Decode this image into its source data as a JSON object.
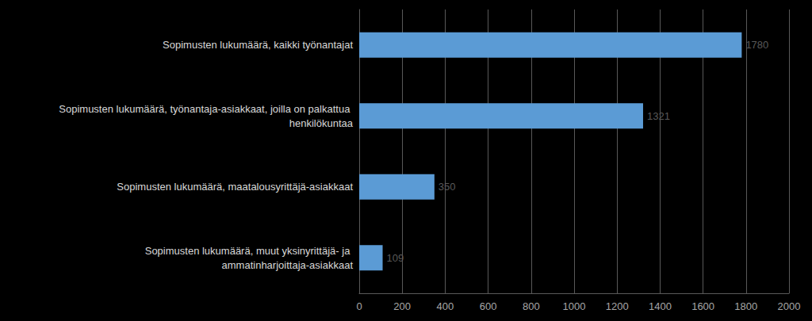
{
  "chart_data": {
    "type": "bar",
    "orientation": "horizontal",
    "categories": [
      "Sopimusten lukumäärä, kaikki työnantajat",
      "Sopimusten lukumäärä, työnantaja-asiakkaat, joilla on palkattua henkilökuntaa",
      "Sopimusten lukumäärä, maatalousyrittäjä-asiakkaat",
      "Sopimusten lukumäärä, muut yksinyrittäjä- ja ammatinharjoittaja-asiakkaat"
    ],
    "values": [
      1780,
      1321,
      350,
      109
    ],
    "color": "#5b9bd5",
    "xlim": [
      0,
      2000
    ],
    "xticks": [
      0,
      200,
      400,
      600,
      800,
      1000,
      1200,
      1400,
      1600,
      1800,
      2000
    ],
    "grid": true,
    "data_labels": true
  }
}
